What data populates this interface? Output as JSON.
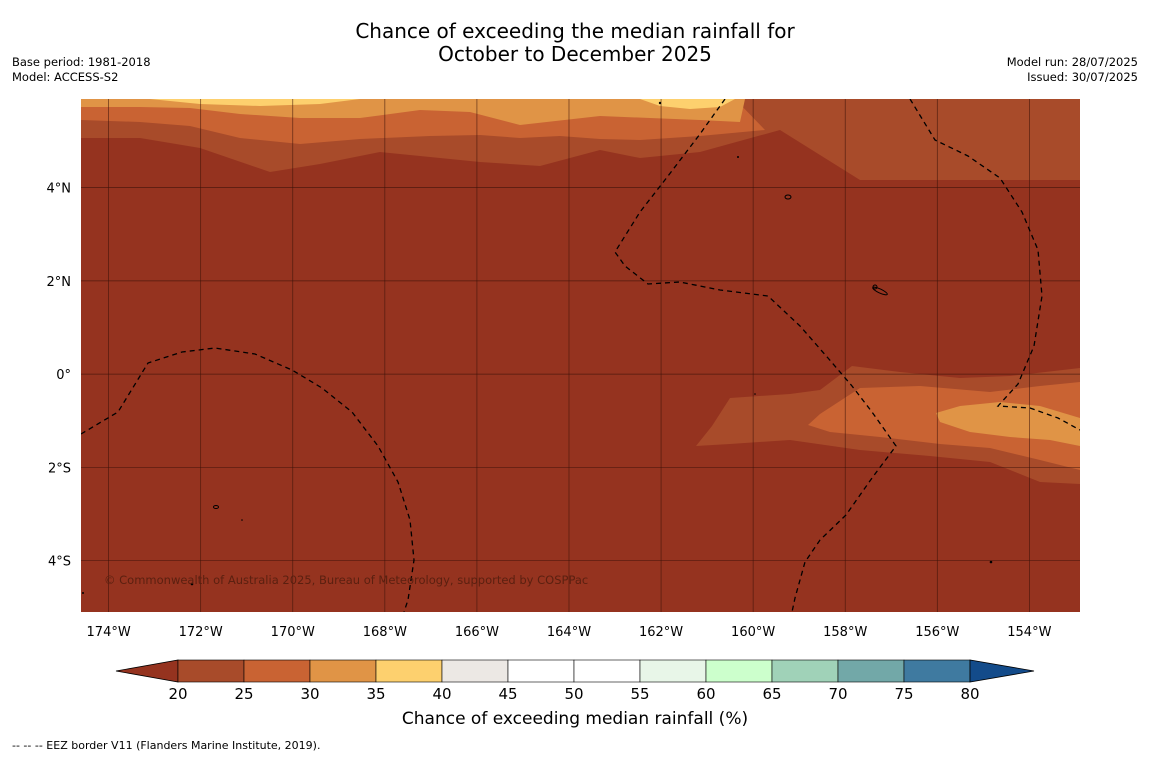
{
  "header": {
    "title_line1": "Chance of exceeding the median rainfall for",
    "title_line2": "October to December 2025",
    "base_period": "Base period: 1981-2018",
    "model": "Model: ACCESS-S2",
    "model_run": "Model run: 28/07/2025",
    "issued": "Issued: 30/07/2025"
  },
  "map": {
    "lon_range": [
      -174.6,
      -152.9
    ],
    "lat_range": [
      -5.1,
      5.9
    ],
    "lon_ticks": [
      {
        "value": -174,
        "label": "174°W"
      },
      {
        "value": -172,
        "label": "172°W"
      },
      {
        "value": -170,
        "label": "170°W"
      },
      {
        "value": -168,
        "label": "168°W"
      },
      {
        "value": -166,
        "label": "166°W"
      },
      {
        "value": -164,
        "label": "164°W"
      },
      {
        "value": -162,
        "label": "162°W"
      },
      {
        "value": -160,
        "label": "160°W"
      },
      {
        "value": -158,
        "label": "158°W"
      },
      {
        "value": -156,
        "label": "156°W"
      },
      {
        "value": -154,
        "label": "154°W"
      }
    ],
    "lat_ticks": [
      {
        "value": 4,
        "label": "4°N"
      },
      {
        "value": 2,
        "label": "2°N"
      },
      {
        "value": 0,
        "label": "0°"
      },
      {
        "value": -2,
        "label": "2°S"
      },
      {
        "value": -4,
        "label": "4°S"
      }
    ],
    "background_class": "below 20",
    "copyright": "© Commonwealth of Australia 2025, Bureau of Meteorology, supported by COSPPac"
  },
  "colorbar": {
    "ticks": [
      "20",
      "25",
      "30",
      "35",
      "40",
      "45",
      "50",
      "55",
      "60",
      "65",
      "70",
      "75",
      "80"
    ],
    "colors": [
      "#a84b2a",
      "#c96333",
      "#e09446",
      "#fdd06e",
      "#ece8e4",
      "#ffffff",
      "#ffffff",
      "#e8f6e8",
      "#ccffcc",
      "#a0d2b8",
      "#72a8a8",
      "#3f7aa0"
    ],
    "low_extend_color": "#95331f",
    "high_extend_color": "#134b8a",
    "label": "Chance of exceeding median rainfall (%)"
  },
  "legend": {
    "eez_note": "--  --  -- EEZ border V11 (Flanders Marine Institute, 2019)."
  },
  "colors": {
    "below20": "#95331f",
    "c20_25": "#a84b2a",
    "c25_30": "#c96333",
    "c30_35": "#e09446",
    "c35_40": "#fdd06e"
  }
}
